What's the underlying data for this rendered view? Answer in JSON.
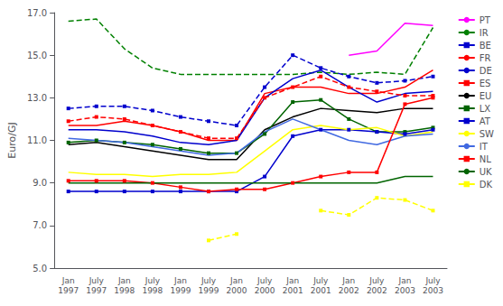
{
  "chart_data": {
    "type": "line",
    "ylabel": "Euro/GJ",
    "categories": [
      "Jan\n1997",
      "July\n1997",
      "Jan\n1998",
      "July\n1998",
      "Jan\n1999",
      "July\n1999",
      "Jan\n2000",
      "July\n2000",
      "Jan\n2001",
      "July\n2001",
      "Jan\n2002",
      "July\n2002",
      "Jan\n2003",
      "July\n2003"
    ],
    "ylim": [
      5.0,
      17.0
    ],
    "yticks": [
      {
        "value": 5.0,
        "label": "5.0"
      },
      {
        "value": 7.0,
        "label": "7.0"
      },
      {
        "value": 9.0,
        "label": "9.0"
      },
      {
        "value": 11.0,
        "label": "11.0"
      },
      {
        "value": 13.0,
        "label": "13.0"
      },
      {
        "value": 15.0,
        "label": "15.0"
      },
      {
        "value": 17.0,
        "label": "17.0"
      }
    ],
    "grid": false,
    "legend": "upper right",
    "series": [
      {
        "name": "PT",
        "color": "#ff00ff",
        "line_style": "solid",
        "marker": "none",
        "values": [
          null,
          null,
          null,
          null,
          null,
          null,
          null,
          null,
          null,
          null,
          15.0,
          15.2,
          16.5,
          16.4
        ]
      },
      {
        "name": "IR",
        "color": "#008000",
        "line_style": "dashed",
        "marker": "none",
        "values": [
          16.6,
          16.7,
          15.3,
          14.4,
          14.1,
          14.1,
          14.1,
          14.1,
          14.1,
          14.2,
          14.1,
          14.2,
          14.1,
          16.3
        ]
      },
      {
        "name": "BE",
        "color": "#0000cd",
        "line_style": "dashed",
        "marker": "square",
        "values": [
          12.5,
          12.6,
          12.6,
          12.4,
          12.1,
          11.9,
          11.7,
          13.5,
          15.0,
          14.4,
          14.0,
          13.7,
          13.8,
          14.0
        ]
      },
      {
        "name": "FR",
        "color": "#ff0000",
        "line_style": "solid",
        "marker": "none",
        "values": [
          11.7,
          11.7,
          11.9,
          11.7,
          11.4,
          11.0,
          11.0,
          13.2,
          13.5,
          13.5,
          13.2,
          13.2,
          13.5,
          14.3
        ]
      },
      {
        "name": "DE",
        "color": "#0000cd",
        "line_style": "solid",
        "marker": "none",
        "values": [
          11.5,
          11.5,
          11.4,
          11.2,
          10.9,
          10.8,
          11.0,
          13.0,
          13.9,
          14.3,
          13.5,
          12.8,
          13.2,
          13.3
        ]
      },
      {
        "name": "ES",
        "color": "#ff0000",
        "line_style": "dashed",
        "marker": "square",
        "values": [
          11.9,
          12.1,
          12.0,
          11.7,
          11.4,
          11.1,
          11.1,
          13.0,
          13.5,
          14.0,
          13.5,
          13.3,
          13.1,
          13.1
        ]
      },
      {
        "name": "EU",
        "color": "#000000",
        "line_style": "solid",
        "marker": "none",
        "values": [
          10.8,
          10.9,
          10.7,
          10.5,
          10.3,
          10.1,
          10.1,
          11.5,
          12.1,
          12.5,
          12.4,
          12.3,
          12.5,
          12.5
        ]
      },
      {
        "name": "LX",
        "color": "#006400",
        "line_style": "solid",
        "marker": "square",
        "values": [
          10.9,
          11.0,
          10.9,
          10.8,
          10.6,
          10.4,
          10.4,
          11.3,
          12.8,
          12.9,
          12.0,
          11.4,
          11.4,
          11.6
        ]
      },
      {
        "name": "AT",
        "color": "#0000cd",
        "line_style": "solid",
        "marker": "square",
        "values": [
          8.6,
          8.6,
          8.6,
          8.6,
          8.6,
          8.6,
          8.6,
          9.3,
          11.2,
          11.5,
          11.5,
          11.4,
          11.3,
          11.5
        ]
      },
      {
        "name": "SW",
        "color": "#ffff00",
        "line_style": "solid",
        "marker": "none",
        "values": [
          9.5,
          9.4,
          9.4,
          9.3,
          9.4,
          9.4,
          9.5,
          10.5,
          11.5,
          11.7,
          11.5,
          11.6,
          11.2,
          11.4
        ]
      },
      {
        "name": "IT",
        "color": "#4169e1",
        "line_style": "solid",
        "marker": "none",
        "values": [
          11.1,
          11.0,
          10.9,
          10.7,
          10.5,
          10.3,
          10.4,
          11.4,
          12.0,
          11.5,
          11.0,
          10.8,
          11.2,
          11.3
        ]
      },
      {
        "name": "NL",
        "color": "#ff0000",
        "line_style": "solid",
        "marker": "square",
        "values": [
          9.1,
          9.1,
          9.1,
          9.0,
          8.8,
          8.6,
          8.7,
          8.7,
          9.0,
          9.3,
          9.5,
          9.5,
          12.7,
          13.0
        ]
      },
      {
        "name": "UK",
        "color": "#006400",
        "line_style": "solid",
        "marker": "none",
        "values": [
          9.0,
          9.0,
          9.0,
          9.0,
          9.0,
          9.0,
          9.0,
          9.0,
          9.0,
          9.0,
          9.0,
          9.0,
          9.3,
          9.3
        ]
      },
      {
        "name": "DK",
        "color": "#ffff00",
        "line_style": "dashed",
        "marker": "square",
        "values": [
          null,
          null,
          null,
          null,
          null,
          6.3,
          6.6,
          null,
          null,
          7.7,
          7.5,
          8.3,
          8.2,
          7.7
        ]
      }
    ]
  }
}
